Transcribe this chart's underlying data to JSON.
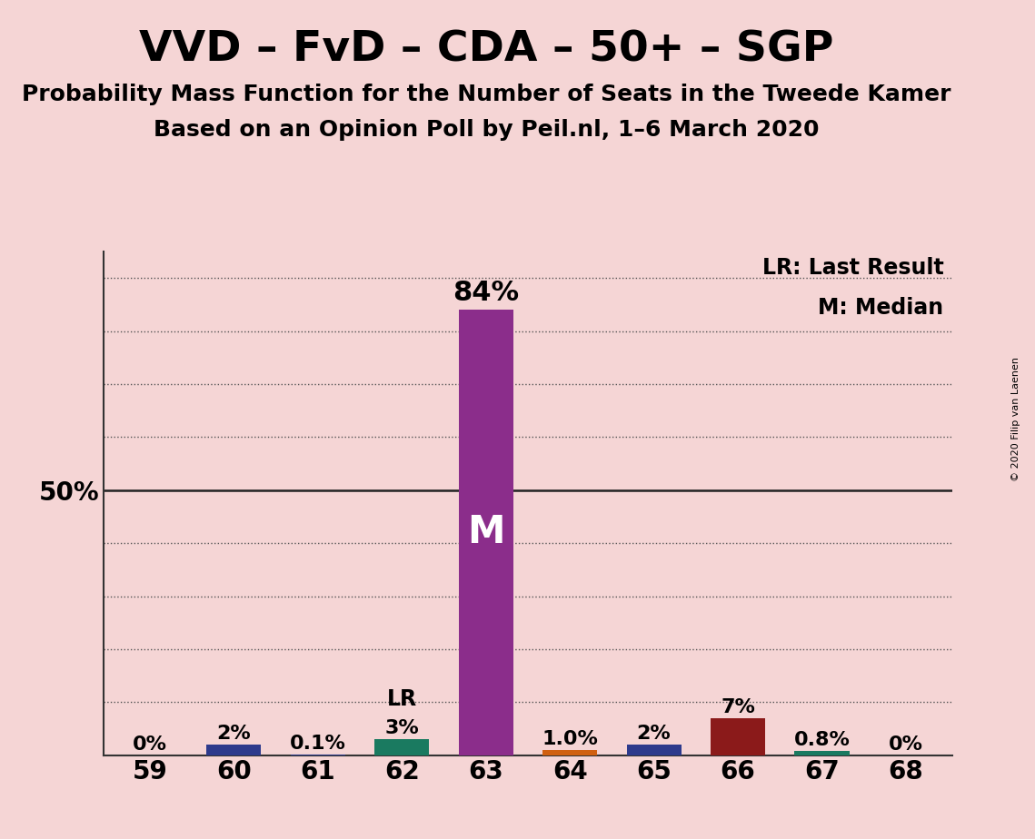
{
  "title": "VVD – FvD – CDA – 50+ – SGP",
  "subtitle1": "Probability Mass Function for the Number of Seats in the Tweede Kamer",
  "subtitle2": "Based on an Opinion Poll by Peil.nl, 1–6 March 2020",
  "copyright": "© 2020 Filip van Laenen",
  "legend_lr": "LR: Last Result",
  "legend_m": "M: Median",
  "x_labels": [
    59,
    60,
    61,
    62,
    63,
    64,
    65,
    66,
    67,
    68
  ],
  "values": [
    0.0,
    2.0,
    0.1,
    3.0,
    84.0,
    1.0,
    2.0,
    7.0,
    0.8,
    0.0
  ],
  "pct_labels": [
    "0%",
    "2%",
    "0.1%",
    "3%",
    "84%",
    "1.0%",
    "2%",
    "7%",
    "0.8%",
    "0%"
  ],
  "bar_colors": [
    "#f0c8c8",
    "#2d3a8c",
    "#2d3a8c",
    "#1a7a60",
    "#8b2d8b",
    "#d06010",
    "#2d3a8c",
    "#8b1a1a",
    "#1a7a60",
    "#1a7a60"
  ],
  "median_bar": 4,
  "lr_bar": 3,
  "median_label": "M",
  "lr_label": "LR",
  "background_color": "#f5d5d5",
  "plot_bg_color": "#f5d5d5",
  "y_ticks": [
    0,
    10,
    20,
    30,
    40,
    50,
    60,
    70,
    80,
    90
  ],
  "ylim": [
    0,
    95
  ],
  "bar_width": 0.65,
  "title_fontsize": 34,
  "subtitle_fontsize": 18,
  "tick_fontsize": 20,
  "label_fontsize": 16,
  "legend_fontsize": 17
}
